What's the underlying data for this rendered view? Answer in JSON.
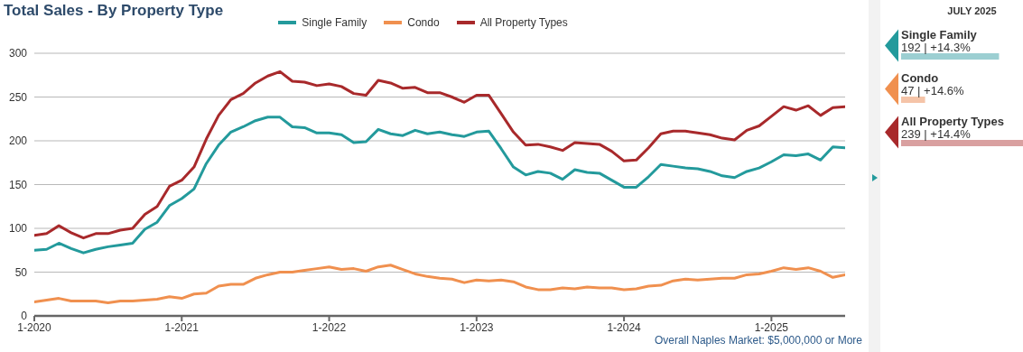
{
  "chart_data": [
    {
      "type": "line",
      "title": "Total Sales - By Property Type",
      "x": [
        "2020-01",
        "2020-02",
        "2020-03",
        "2020-04",
        "2020-05",
        "2020-06",
        "2020-07",
        "2020-08",
        "2020-09",
        "2020-10",
        "2020-11",
        "2020-12",
        "2021-01",
        "2021-02",
        "2021-03",
        "2021-04",
        "2021-05",
        "2021-06",
        "2021-07",
        "2021-08",
        "2021-09",
        "2021-10",
        "2021-11",
        "2021-12",
        "2022-01",
        "2022-02",
        "2022-03",
        "2022-04",
        "2022-05",
        "2022-06",
        "2022-07",
        "2022-08",
        "2022-09",
        "2022-10",
        "2022-11",
        "2022-12",
        "2023-01",
        "2023-02",
        "2023-03",
        "2023-04",
        "2023-05",
        "2023-06",
        "2023-07",
        "2023-08",
        "2023-09",
        "2023-10",
        "2023-11",
        "2023-12",
        "2024-01",
        "2024-02",
        "2024-03",
        "2024-04",
        "2024-05",
        "2024-06",
        "2024-07",
        "2024-08",
        "2024-09",
        "2024-10",
        "2024-11",
        "2024-12",
        "2025-01",
        "2025-02",
        "2025-03",
        "2025-04",
        "2025-05",
        "2025-06",
        "2025-07"
      ],
      "series": [
        {
          "name": "Single Family",
          "color": "#239a9c",
          "values": [
            75,
            76,
            83,
            77,
            72,
            76,
            79,
            81,
            83,
            99,
            107,
            126,
            134,
            145,
            174,
            195,
            210,
            216,
            223,
            227,
            227,
            216,
            215,
            209,
            209,
            207,
            198,
            199,
            213,
            208,
            206,
            212,
            208,
            210,
            207,
            205,
            210,
            211,
            191,
            170,
            161,
            165,
            163,
            156,
            167,
            164,
            163,
            155,
            147,
            147,
            159,
            173,
            171,
            169,
            168,
            165,
            160,
            158,
            165,
            169,
            176,
            184,
            183,
            185,
            178,
            193,
            192
          ]
        },
        {
          "name": "Condo",
          "color": "#f0904f",
          "values": [
            16,
            18,
            20,
            17,
            17,
            17,
            15,
            17,
            17,
            18,
            19,
            22,
            20,
            25,
            26,
            34,
            36,
            36,
            43,
            47,
            50,
            50,
            52,
            54,
            56,
            53,
            54,
            51,
            56,
            58,
            53,
            48,
            45,
            43,
            42,
            38,
            41,
            40,
            41,
            39,
            33,
            30,
            30,
            32,
            31,
            33,
            32,
            32,
            30,
            31,
            34,
            35,
            40,
            42,
            41,
            42,
            43,
            43,
            47,
            48,
            51,
            55,
            53,
            55,
            51,
            44,
            47
          ]
        },
        {
          "name": "All Property Types",
          "color": "#a8292b",
          "values": [
            92,
            94,
            103,
            95,
            89,
            94,
            94,
            98,
            100,
            116,
            125,
            148,
            155,
            170,
            202,
            229,
            247,
            254,
            266,
            274,
            279,
            268,
            267,
            263,
            265,
            262,
            254,
            252,
            269,
            266,
            260,
            261,
            255,
            255,
            250,
            244,
            252,
            252,
            231,
            210,
            195,
            196,
            193,
            189,
            198,
            197,
            196,
            188,
            177,
            178,
            192,
            208,
            211,
            211,
            209,
            207,
            203,
            201,
            212,
            217,
            228,
            239,
            235,
            240,
            229,
            238,
            239
          ]
        }
      ],
      "xlim": [
        "2020-01",
        "2025-07"
      ],
      "xticks": [
        {
          "value": "2020-01",
          "label": "1-2020"
        },
        {
          "value": "2021-01",
          "label": "1-2021"
        },
        {
          "value": "2022-01",
          "label": "1-2022"
        },
        {
          "value": "2023-01",
          "label": "1-2023"
        },
        {
          "value": "2024-01",
          "label": "1-2024"
        },
        {
          "value": "2025-01",
          "label": "1-2025"
        }
      ],
      "ylim": [
        0,
        300
      ],
      "yticks": [
        0,
        50,
        100,
        150,
        200,
        250,
        300
      ],
      "grid": "y",
      "legend": "top",
      "marker": "none",
      "line_style": "solid",
      "annotations": [
        "Overall Naples Market: $5,000,000 or More"
      ]
    },
    {
      "type": "bar",
      "orientation": "horizontal",
      "title": "JULY 2025",
      "categories": [
        "Single Family",
        "Condo",
        "All Property Types"
      ],
      "values": [
        192,
        47,
        239
      ],
      "colors": [
        "#9ccfd2",
        "#f5c4a8",
        "#d9a0a0"
      ],
      "value_labels": [
        "192 | +14.3%",
        "47 | +14.6%",
        "239 | +14.4%"
      ]
    }
  ]
}
